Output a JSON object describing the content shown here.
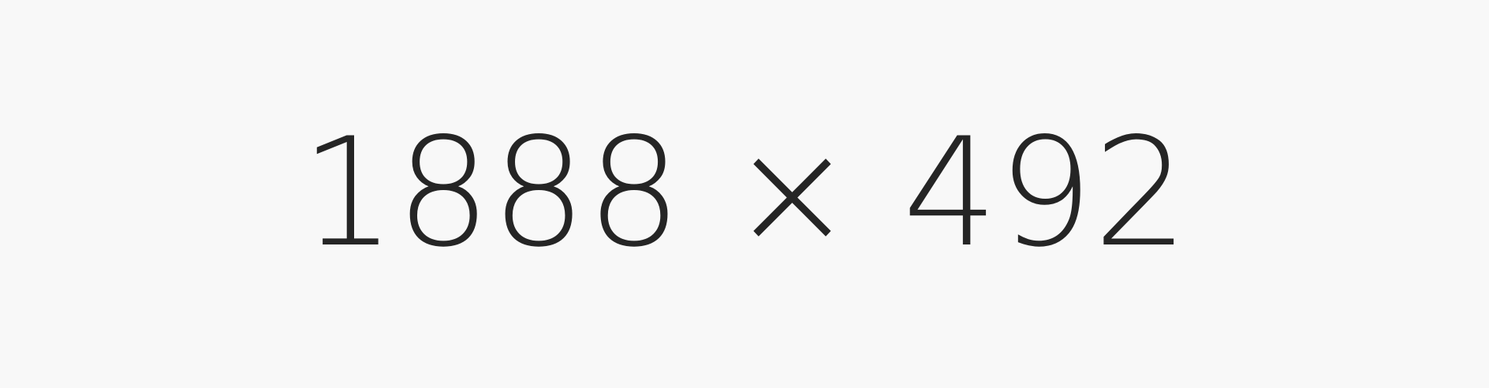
{
  "display": {
    "text": "1888 × 492"
  },
  "colors": {
    "background": "#f8f8f8",
    "text": "#252525"
  }
}
